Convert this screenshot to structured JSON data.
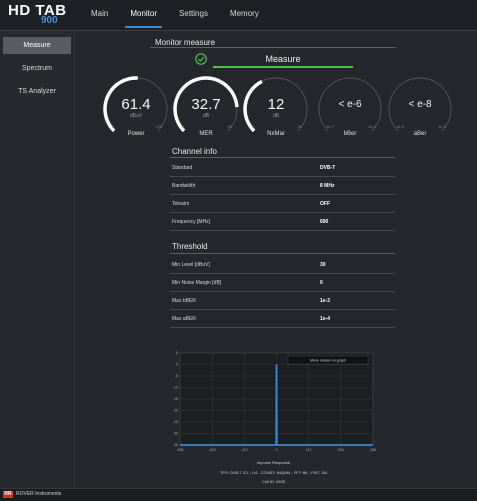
{
  "app": {
    "brand": "HD TAB",
    "brand_model": "900"
  },
  "tabs": [
    {
      "label": "Main",
      "active": false
    },
    {
      "label": "Monitor",
      "active": true
    },
    {
      "label": "Settings",
      "active": false
    },
    {
      "label": "Memory",
      "active": false
    }
  ],
  "sidebar": {
    "items": [
      {
        "label": "Measure",
        "active": true
      },
      {
        "label": "Spectrum",
        "active": false
      },
      {
        "label": "TS Analyzer",
        "active": false
      }
    ]
  },
  "monitor": {
    "section_title": "Monitor measure",
    "measure_button": "Measure",
    "status_icon": "check-circle-icon",
    "status_color": "#4cc24c"
  },
  "gauges": [
    {
      "label": "Power",
      "value": "61.4",
      "unit": "dBuV",
      "min": "0",
      "max": "120",
      "fraction": 0.512
    },
    {
      "label": "MER",
      "value": "32.7",
      "unit": "dB",
      "min": "0",
      "max": "40",
      "fraction": 0.82
    },
    {
      "label": "NxMar",
      "value": "12",
      "unit": "dB",
      "min": "0",
      "max": "30",
      "fraction": 0.4
    },
    {
      "label": "bBer",
      "value": "< e-6",
      "unit": "",
      "min": "1e-7",
      "max": "1e-2",
      "fraction": 0
    },
    {
      "label": "aBer",
      "value": "< e-8",
      "unit": "",
      "min": "1e-9",
      "max": "1e-2",
      "fraction": 0
    }
  ],
  "channel_info": {
    "title": "Channel info",
    "rows": [
      {
        "key": "Standard",
        "value": "DVB-T"
      },
      {
        "key": "Bandwidth",
        "value": "8 MHz"
      },
      {
        "key": "Teleaim",
        "value": "OFF"
      },
      {
        "key": "Frequency [MHz]",
        "value": "690"
      }
    ]
  },
  "threshold": {
    "title": "Threshold",
    "rows": [
      {
        "key": "Min Level [dBuV]",
        "value": "30"
      },
      {
        "key": "Min Noise Margin [dB]",
        "value": "0"
      },
      {
        "key": "Max bBER",
        "value": "1e-2"
      },
      {
        "key": "Max aBER",
        "value": "1e-4"
      }
    ]
  },
  "chart_data": {
    "type": "line",
    "title": "",
    "xlabel": "Impulse Response",
    "ylabel": "",
    "xlim": [
      -336,
      336
    ],
    "ylim": [
      -35,
      5
    ],
    "x_ticks": [
      "-336",
      "-224",
      "-112",
      "0",
      "112",
      "224",
      "336"
    ],
    "y_ticks": [
      "5",
      "0",
      "-5",
      "-10",
      "-15",
      "-20",
      "-25",
      "-30",
      "-35"
    ],
    "grid": true,
    "tooltip": "Move mouse on graph",
    "series": [
      {
        "x": [
          -336,
          -1,
          0,
          1,
          336
        ],
        "y": [
          -35,
          -35,
          0,
          -35,
          -35
        ]
      }
    ],
    "line_color": "#3a87d4"
  },
  "signal_info": {
    "tps": "TPS: DVB-T G.I.: 1/4 - CONST: 64QAM - FFT: 8K - FEC: 3/4",
    "cell_id": "Cell ID: 5835"
  },
  "footer": {
    "logo": "RR",
    "company": "ROVER Instruments"
  }
}
